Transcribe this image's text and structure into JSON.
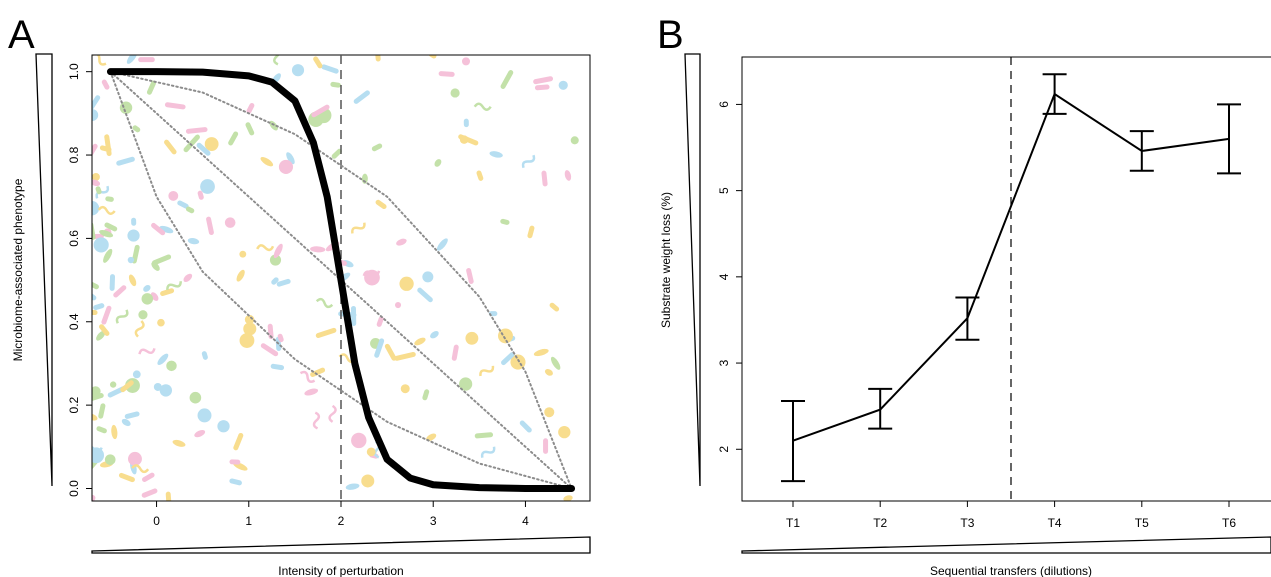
{
  "colors": {
    "axis": "#000000",
    "main_curve": "#000000",
    "dotted_curves": "#8c8c8c",
    "dashed_line": "#555555",
    "microbe_pink": "#f4b6d2",
    "microbe_green": "#b9dc9a",
    "microbe_yellow": "#f7d77a",
    "microbe_blue": "#a9d8ef"
  },
  "chart_data": [
    {
      "panel": "A",
      "type": "line",
      "xlabel": "Intensity of perturbation",
      "ylabel": "Microbiome-associated phenotype",
      "xlim": [
        -0.7,
        4.7
      ],
      "ylim": [
        -0.03,
        1.04
      ],
      "x_ticks": [
        0,
        1,
        2,
        3,
        4
      ],
      "y_ticks": [
        0.0,
        0.2,
        0.4,
        0.6,
        0.8,
        1.0
      ],
      "y_tick_labels": [
        "0.0",
        "0.2",
        "0.4",
        "0.6",
        "0.8",
        "1.0"
      ],
      "vline_x": 2,
      "grid": false,
      "background": "microbe-illustration",
      "series": [
        {
          "style": "thick-solid",
          "x": [
            -0.5,
            0,
            0.5,
            1,
            1.25,
            1.5,
            1.7,
            1.85,
            2,
            2.15,
            2.3,
            2.5,
            2.75,
            3,
            3.5,
            4,
            4.5
          ],
          "y": [
            1.0,
            1.0,
            0.999,
            0.99,
            0.975,
            0.93,
            0.83,
            0.7,
            0.5,
            0.3,
            0.17,
            0.07,
            0.025,
            0.009,
            0.002,
            0.0,
            0.0
          ]
        },
        {
          "style": "dotted",
          "x": [
            -0.5,
            0.5,
            1.5,
            2.5,
            3.5,
            4,
            4.5
          ],
          "y": [
            1.0,
            0.95,
            0.85,
            0.7,
            0.46,
            0.28,
            0.0
          ]
        },
        {
          "style": "dotted",
          "x": [
            -0.5,
            0.5,
            1.5,
            2.5,
            3.5,
            4.5
          ],
          "y": [
            1.0,
            0.8,
            0.6,
            0.4,
            0.2,
            0.0
          ]
        },
        {
          "style": "dotted",
          "x": [
            -0.5,
            0,
            0.5,
            1.5,
            2.5,
            3.5,
            4.5
          ],
          "y": [
            1.0,
            0.7,
            0.52,
            0.31,
            0.16,
            0.06,
            0.0
          ]
        }
      ]
    },
    {
      "panel": "B",
      "type": "line",
      "xlabel": "Sequential transfers (dilutions)",
      "ylabel": "Substrate weight loss (%)",
      "categories": [
        "T1",
        "T2",
        "T3",
        "T4",
        "T5",
        "T6"
      ],
      "ylim": [
        1.4,
        6.55
      ],
      "y_ticks": [
        2,
        3,
        4,
        5,
        6
      ],
      "vline_between": [
        3,
        4
      ],
      "grid": false,
      "series": [
        {
          "values": [
            2.1,
            2.46,
            3.52,
            6.12,
            5.46,
            5.6
          ],
          "err_low": [
            1.63,
            2.24,
            3.27,
            5.89,
            5.23,
            5.2
          ],
          "err_high": [
            2.56,
            2.7,
            3.76,
            6.35,
            5.69,
            6.0
          ]
        }
      ]
    }
  ]
}
